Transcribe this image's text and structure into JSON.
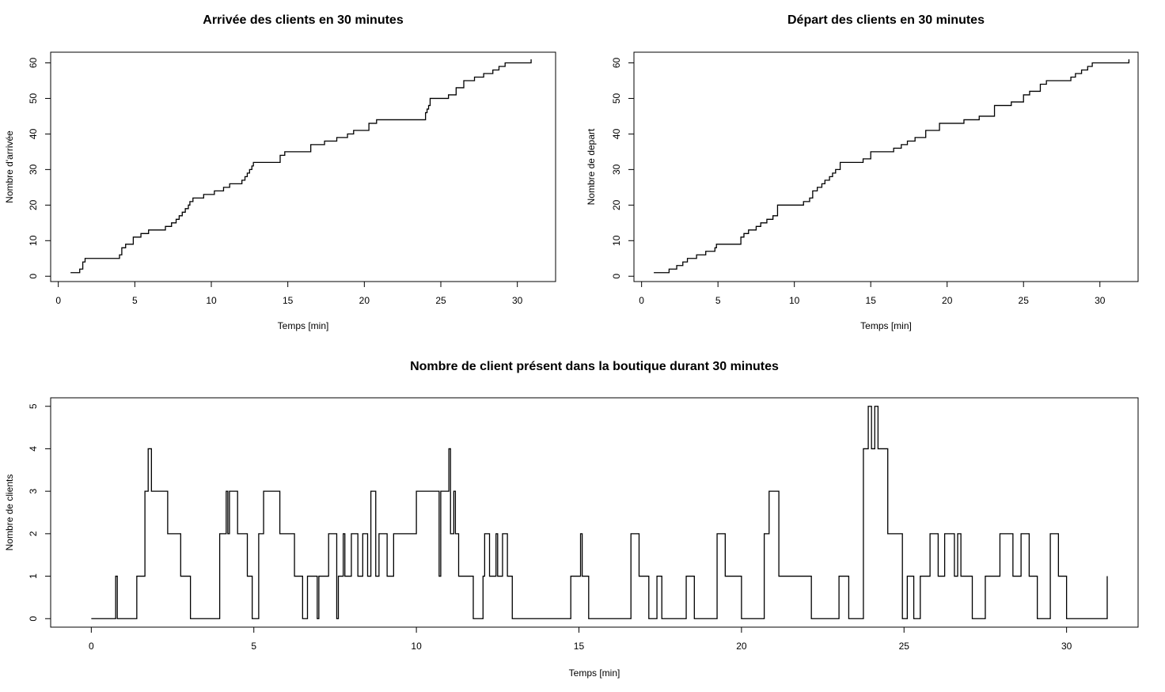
{
  "chart_data": [
    {
      "type": "line",
      "step": true,
      "title": "Arrivée des clients en 30 minutes",
      "xlabel": "Temps [min]",
      "ylabel": "Nombre d'arrivée",
      "xlim": [
        -0.5,
        32.5
      ],
      "ylim": [
        -1.5,
        63
      ],
      "xticks": [
        0,
        5,
        10,
        15,
        20,
        25,
        30
      ],
      "yticks": [
        0,
        10,
        20,
        30,
        40,
        50,
        60
      ],
      "grid": false,
      "series": [
        {
          "x": [
            0.8,
            1.4,
            1.6,
            1.75,
            4.0,
            4.15,
            4.4,
            4.9,
            5.4,
            5.9,
            7.0,
            7.4,
            7.7,
            7.9,
            8.1,
            8.3,
            8.5,
            8.6,
            8.8,
            9.5,
            10.2,
            10.8,
            11.2,
            12.0,
            12.2,
            12.35,
            12.5,
            12.65,
            12.75,
            14.5,
            14.8,
            16.5,
            17.4,
            18.2,
            18.9,
            19.3,
            20.3,
            20.8,
            24.0,
            24.1,
            24.2,
            24.3,
            25.5,
            26.0,
            26.5,
            27.2,
            27.8,
            28.4,
            28.8,
            29.2,
            29.5,
            30.9
          ],
          "y": [
            1,
            2,
            4,
            5,
            6,
            8,
            9,
            11,
            12,
            13,
            14,
            15,
            16,
            17,
            18,
            19,
            20,
            21,
            22,
            23,
            24,
            25,
            26,
            27,
            28,
            29,
            30,
            31,
            32,
            34,
            35,
            37,
            38,
            39,
            40,
            41,
            43,
            44,
            46,
            47,
            48,
            50,
            51,
            53,
            55,
            56,
            57,
            58,
            59,
            60,
            60,
            61
          ]
        }
      ]
    },
    {
      "type": "line",
      "step": true,
      "title": "Départ des clients en 30 minutes",
      "xlabel": "Temps [min]",
      "ylabel": "Nombre de depart",
      "xlim": [
        -0.5,
        32.5
      ],
      "ylim": [
        -1.5,
        63
      ],
      "xticks": [
        0,
        5,
        10,
        15,
        20,
        25,
        30
      ],
      "yticks": [
        0,
        10,
        20,
        30,
        40,
        50,
        60
      ],
      "grid": false,
      "series": [
        {
          "x": [
            0.8,
            1.8,
            2.3,
            2.7,
            3.0,
            3.6,
            4.2,
            4.8,
            4.9,
            6.5,
            6.7,
            7.0,
            7.5,
            7.8,
            8.2,
            8.6,
            8.9,
            10.6,
            11.0,
            11.2,
            11.5,
            11.8,
            12.0,
            12.3,
            12.5,
            12.7,
            13.0,
            14.5,
            15.0,
            16.5,
            17.0,
            17.4,
            17.9,
            18.6,
            19.5,
            21.1,
            22.1,
            23.1,
            24.2,
            25.0,
            25.4,
            26.1,
            26.5,
            28.1,
            28.4,
            28.8,
            29.2,
            29.5,
            29.7,
            31.9
          ],
          "y": [
            1,
            2,
            3,
            4,
            5,
            6,
            7,
            8,
            9,
            11,
            12,
            13,
            14,
            15,
            16,
            17,
            20,
            21,
            22,
            24,
            25,
            26,
            27,
            28,
            29,
            30,
            32,
            33,
            35,
            36,
            37,
            38,
            39,
            41,
            43,
            44,
            45,
            48,
            49,
            51,
            52,
            54,
            55,
            56,
            57,
            58,
            59,
            60,
            60,
            61
          ]
        }
      ]
    },
    {
      "type": "line",
      "step": true,
      "title": "Nombre de client présent dans la boutique durant 30 minutes",
      "xlabel": "Temps [min]",
      "ylabel": "Nombre de clients",
      "xlim": [
        -1.25,
        32.2
      ],
      "ylim": [
        -0.2,
        5.2
      ],
      "xticks": [
        0,
        5,
        10,
        15,
        20,
        25,
        30
      ],
      "yticks": [
        0,
        1,
        2,
        3,
        4,
        5
      ],
      "grid": false,
      "series": [
        {
          "x": [
            0,
            0.75,
            0.8,
            1.4,
            1.65,
            1.75,
            1.85,
            2.35,
            2.75,
            3.05,
            3.95,
            4.15,
            4.2,
            4.25,
            4.5,
            4.8,
            4.95,
            5.15,
            5.3,
            5.8,
            6.25,
            6.5,
            6.65,
            6.95,
            7.0,
            7.3,
            7.55,
            7.6,
            7.75,
            7.8,
            8.0,
            8.2,
            8.35,
            8.5,
            8.6,
            8.75,
            8.85,
            9.1,
            9.3,
            10.0,
            10.7,
            10.75,
            11.0,
            11.05,
            11.15,
            11.2,
            11.3,
            11.75,
            12.05,
            12.1,
            12.25,
            12.45,
            12.5,
            12.65,
            12.8,
            12.95,
            13.1,
            14.75,
            15.05,
            15.1,
            15.3,
            16.6,
            16.85,
            17.15,
            17.4,
            17.55,
            18.3,
            18.55,
            19.25,
            19.5,
            20.0,
            20.7,
            20.85,
            21.15,
            22.15,
            23.0,
            23.3,
            23.75,
            23.9,
            24.0,
            24.1,
            24.2,
            24.5,
            24.55,
            24.95,
            25.1,
            25.3,
            25.5,
            25.8,
            26.05,
            26.25,
            26.55,
            26.65,
            26.75,
            27.1,
            27.5,
            27.95,
            28.35,
            28.6,
            28.85,
            29.1,
            29.5,
            29.75,
            30.0,
            31.25
          ],
          "y": [
            0,
            1,
            0,
            1,
            3,
            4,
            3,
            2,
            1,
            0,
            2,
            3,
            2,
            3,
            2,
            1,
            0,
            2,
            3,
            2,
            1,
            0,
            1,
            0,
            1,
            2,
            0,
            1,
            2,
            1,
            2,
            1,
            2,
            1,
            3,
            1,
            2,
            1,
            2,
            3,
            1,
            3,
            4,
            2,
            3,
            2,
            1,
            0,
            1,
            2,
            1,
            2,
            1,
            2,
            1,
            0,
            0,
            1,
            2,
            1,
            0,
            2,
            1,
            0,
            1,
            0,
            1,
            0,
            2,
            1,
            0,
            2,
            3,
            1,
            0,
            1,
            0,
            4,
            5,
            4,
            5,
            4,
            2,
            2,
            0,
            1,
            0,
            1,
            2,
            1,
            2,
            1,
            2,
            1,
            0,
            1,
            2,
            1,
            2,
            1,
            0,
            2,
            1,
            0,
            1
          ]
        }
      ]
    }
  ]
}
